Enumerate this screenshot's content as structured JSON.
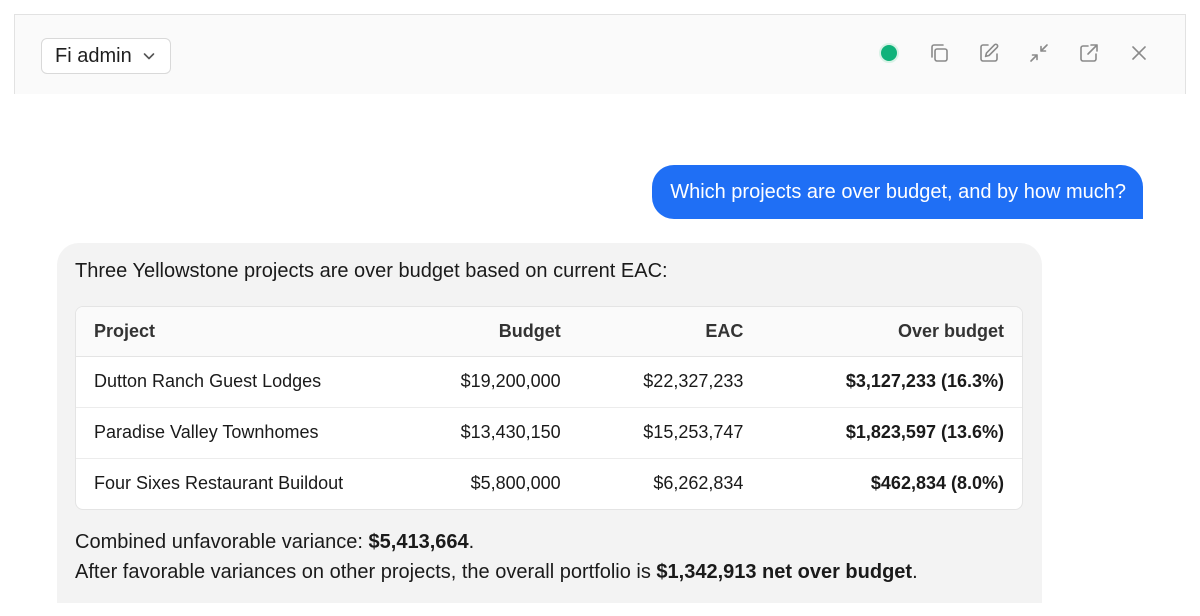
{
  "header": {
    "agent_label": "Fi admin",
    "status_color": "#10b27a",
    "tools": [
      "copy-icon",
      "edit-icon",
      "minimize-icon",
      "external-link-icon",
      "close-icon"
    ]
  },
  "conversation": {
    "user_message": "Which projects are over budget, and by how much?",
    "reply": {
      "intro": "Three Yellowstone projects are over budget based on current EAC:",
      "table": {
        "headers": [
          "Project",
          "Budget",
          "EAC",
          "Over budget"
        ],
        "rows": [
          [
            "Dutton Ranch Guest Lodges",
            "$19,200,000",
            "$22,327,233",
            "$3,127,233 (16.3%)"
          ],
          [
            "Paradise Valley Townhomes",
            "$13,430,150",
            "$15,253,747",
            "$1,823,597 (13.6%)"
          ],
          [
            "Four Sixes Restaurant Buildout",
            "$5,800,000",
            "$6,262,834",
            "$462,834 (8.0%)"
          ]
        ]
      },
      "summary": {
        "line1_prefix": "Combined unfavorable variance: ",
        "line1_value": "$5,413,664",
        "line1_suffix": ".",
        "line2_prefix": "After favorable variances on other projects, the overall portfolio is ",
        "line2_value": "$1,342,913 net over budget",
        "line2_suffix": "."
      }
    }
  }
}
